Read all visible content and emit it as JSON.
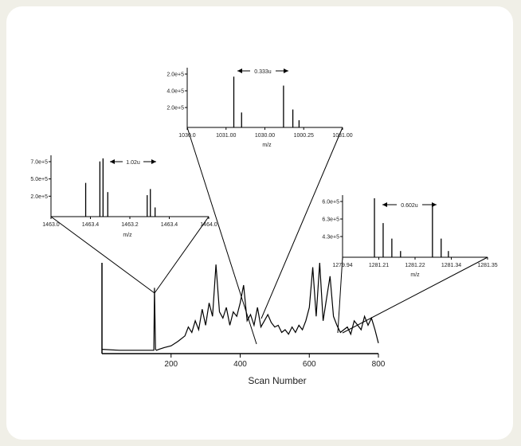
{
  "chart_data": [
    {
      "id": "main",
      "type": "line",
      "xlabel": "Scan Number",
      "ylabel": "",
      "xlim": [
        0,
        800
      ],
      "x_ticks": [
        {
          "value": 200,
          "label": "200"
        },
        {
          "value": 400,
          "label": "400"
        },
        {
          "value": 600,
          "label": "600"
        },
        {
          "value": 800,
          "label": "800"
        }
      ],
      "x": [
        0,
        50,
        100,
        130,
        150,
        152,
        155,
        158,
        165,
        180,
        200,
        220,
        240,
        250,
        260,
        270,
        280,
        290,
        300,
        310,
        320,
        330,
        340,
        350,
        360,
        370,
        380,
        390,
        400,
        410,
        420,
        430,
        440,
        450,
        460,
        470,
        480,
        490,
        500,
        510,
        520,
        530,
        540,
        550,
        560,
        570,
        580,
        590,
        600,
        610,
        620,
        630,
        640,
        650,
        660,
        670,
        680,
        690,
        700,
        710,
        720,
        730,
        740,
        750,
        760,
        770,
        780,
        790,
        800
      ],
      "values": [
        0.03,
        0.02,
        0.02,
        0.02,
        0.02,
        0.72,
        0.03,
        0.02,
        0.03,
        0.05,
        0.07,
        0.12,
        0.18,
        0.28,
        0.22,
        0.35,
        0.25,
        0.48,
        0.3,
        0.55,
        0.4,
        0.98,
        0.45,
        0.38,
        0.5,
        0.3,
        0.45,
        0.4,
        0.55,
        0.75,
        0.35,
        0.42,
        0.3,
        0.5,
        0.28,
        0.35,
        0.42,
        0.33,
        0.28,
        0.3,
        0.22,
        0.25,
        0.2,
        0.28,
        0.22,
        0.3,
        0.25,
        0.35,
        0.5,
        0.95,
        0.4,
        1.0,
        0.35,
        0.6,
        0.85,
        0.4,
        0.3,
        0.22,
        0.25,
        0.28,
        0.2,
        0.35,
        0.3,
        0.25,
        0.4,
        0.3,
        0.38,
        0.25,
        0.1
      ]
    },
    {
      "id": "inset-left",
      "type": "bar",
      "xlabel": "m/z",
      "x_ticks": [
        "1463.0",
        "1463.4",
        "1463.2",
        "1463.4",
        "1464.0"
      ],
      "y_ticks": [
        "7.0e+5",
        "5.0e+5",
        "2.0e+5"
      ],
      "annotation": "1.02u",
      "x": [
        0.22,
        0.31,
        0.33,
        0.36,
        0.61,
        0.63,
        0.66
      ],
      "values": [
        0.55,
        0.9,
        0.95,
        0.4,
        0.35,
        0.45,
        0.15
      ]
    },
    {
      "id": "inset-top",
      "type": "bar",
      "xlabel": "m/z",
      "x_ticks": [
        "1030.0",
        "1031.00",
        "1030.00",
        "1000.25",
        "1031.00"
      ],
      "y_ticks": [
        "2.0e+5",
        "4.0e+5",
        "2.0e+5"
      ],
      "annotation": "0.333u",
      "x": [
        0.3,
        0.35,
        0.62,
        0.68,
        0.72
      ],
      "values": [
        0.85,
        0.25,
        0.7,
        0.3,
        0.12
      ]
    },
    {
      "id": "inset-right",
      "type": "bar",
      "xlabel": "m/z",
      "x_ticks": [
        "1279.94",
        "1281.21",
        "1281.22",
        "1281.34",
        "1281.35"
      ],
      "y_ticks": [
        "6.0e+5",
        "6.3e+5",
        "4.3e+5"
      ],
      "annotation": "0.602u",
      "x": [
        0.22,
        0.28,
        0.34,
        0.4,
        0.62,
        0.68,
        0.73
      ],
      "values": [
        0.95,
        0.55,
        0.3,
        0.1,
        0.85,
        0.3,
        0.1
      ]
    }
  ]
}
